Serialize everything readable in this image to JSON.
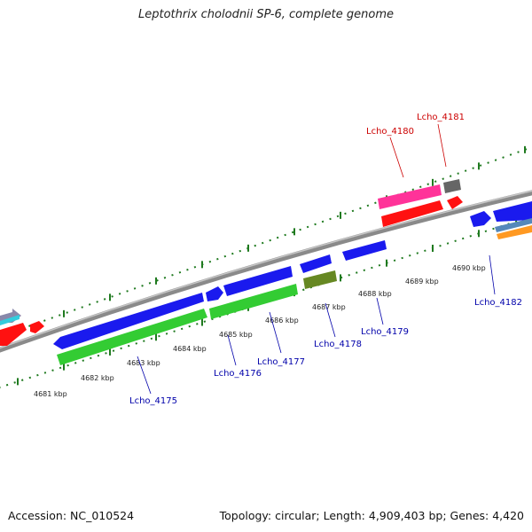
{
  "title": "Leptothrix cholodnii SP-6, complete genome",
  "footer": {
    "accession": "Accession: NC_010524",
    "summary": "Topology: circular; Length: 4,909,403 bp; Genes: 4,420"
  },
  "kbp_labels": [
    "4681 kbp",
    "4682 kbp",
    "4683 kbp",
    "4684 kbp",
    "4685 kbp",
    "4686 kbp",
    "4687 kbp",
    "4688 kbp",
    "4689 kbp",
    "4690 kbp"
  ],
  "genes": [
    {
      "name": "Lcho_4175",
      "color": "#0000aa"
    },
    {
      "name": "Lcho_4176",
      "color": "#0000aa"
    },
    {
      "name": "Lcho_4177",
      "color": "#0000aa"
    },
    {
      "name": "Lcho_4178",
      "color": "#0000aa"
    },
    {
      "name": "Lcho_4179",
      "color": "#0000aa"
    },
    {
      "name": "Lcho_4180",
      "color": "#cc0000"
    },
    {
      "name": "Lcho_4181",
      "color": "#cc0000"
    },
    {
      "name": "Lcho_4182",
      "color": "#0000aa"
    }
  ],
  "colors": {
    "backbone": "#8a8a8a",
    "ticks": "#1f7a1f",
    "cds_blue": "#1a1aee",
    "cds_green": "#33cc33",
    "cds_red": "#ff1111",
    "cds_pink": "#ff3399",
    "cds_olive": "#668822",
    "cds_gray": "#666666"
  }
}
